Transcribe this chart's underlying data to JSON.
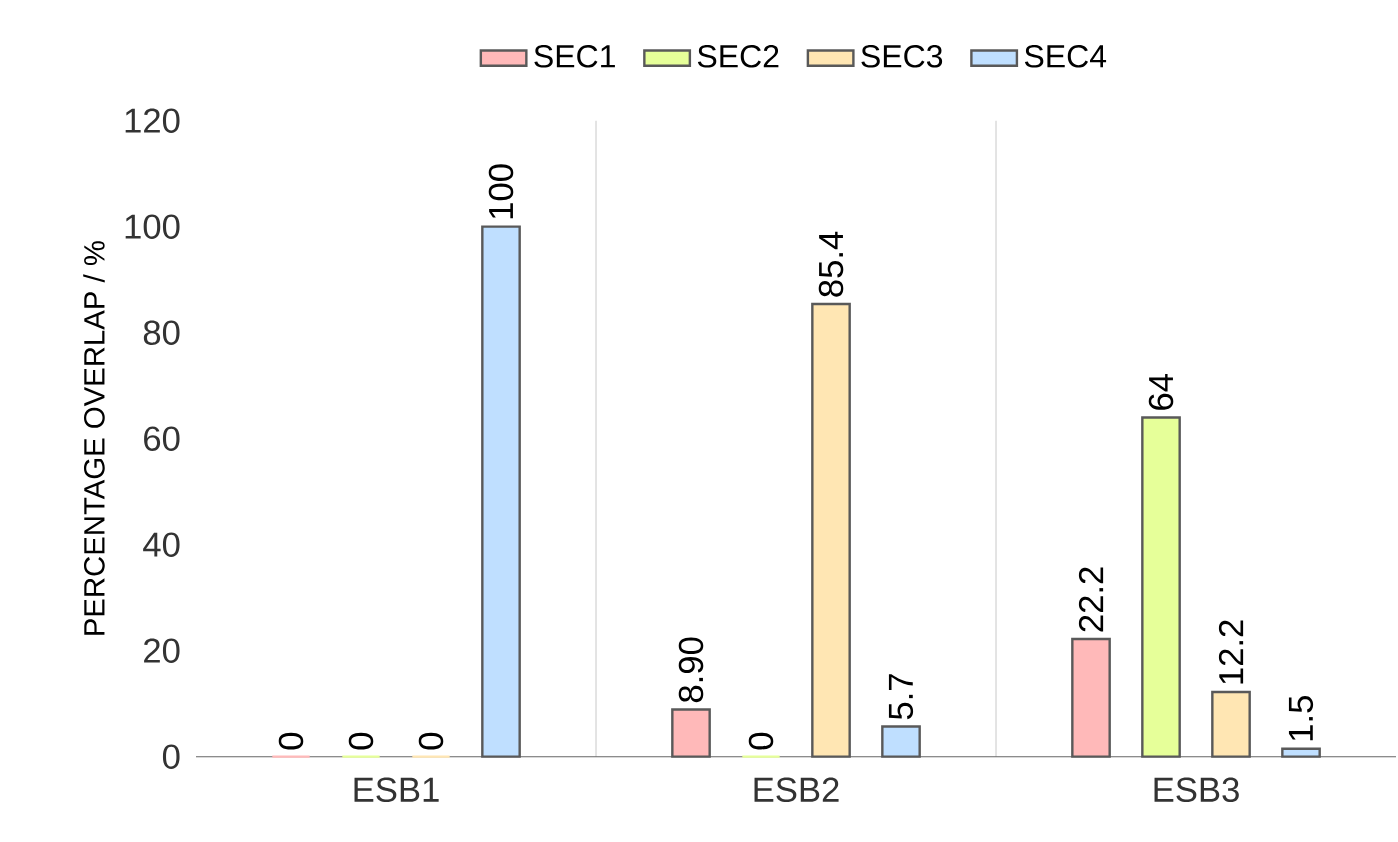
{
  "chart_data": {
    "type": "bar",
    "ylabel": "PERCENTAGE OVERLAP / %",
    "categories": [
      "ESB1",
      "ESB2",
      "ESB3"
    ],
    "series": [
      {
        "name": "SEC1",
        "color": "#ffb9b9",
        "values": [
          0,
          8.9,
          22.2
        ],
        "value_labels": [
          "0",
          "8.90",
          "22.2"
        ]
      },
      {
        "name": "SEC2",
        "color": "#e6ff99",
        "values": [
          0,
          0,
          64
        ],
        "value_labels": [
          "0",
          "0",
          "64"
        ]
      },
      {
        "name": "SEC3",
        "color": "#ffe6b3",
        "values": [
          0,
          85.4,
          12.2
        ],
        "value_labels": [
          "0",
          "85.4",
          "12.2"
        ]
      },
      {
        "name": "SEC4",
        "color": "#bfdfff",
        "values": [
          100,
          5.7,
          1.5
        ],
        "value_labels": [
          "100",
          "5.7",
          "1.5"
        ]
      }
    ],
    "ylim": [
      0,
      120
    ],
    "yticks": [
      0,
      20,
      40,
      60,
      80,
      100,
      120
    ],
    "grid": "x",
    "legend": "top"
  }
}
